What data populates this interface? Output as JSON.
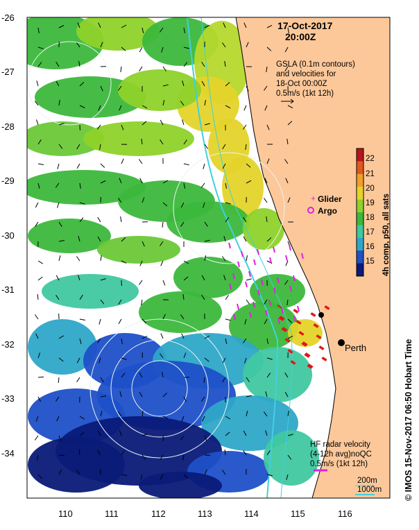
{
  "header": {
    "date": "17-Oct-2017",
    "time": "20:00Z"
  },
  "gsla_note": {
    "line1": "GSLA (0.1m contours)",
    "line2": "and velocities for",
    "line3": "18-Oct 00:00Z",
    "line4": "0.5m/s (1kt 12h)"
  },
  "colorbar": {
    "title": "4h comp, p50, all sats",
    "ticks": [
      "22",
      "21",
      "20",
      "19",
      "18",
      "17",
      "16",
      "15"
    ],
    "range": [
      14.5,
      22.8
    ],
    "colors": [
      "#0a1a78",
      "#1e50c8",
      "#2ea6c8",
      "#40c8a0",
      "#3cb83c",
      "#8ed22a",
      "#e4d42a",
      "#f0a028",
      "#e0581c",
      "#b8141c"
    ]
  },
  "legend": {
    "glider": "Glider",
    "argo": "Argo",
    "glider_color": "#e020e0",
    "argo_color": "#e020e0"
  },
  "place": {
    "perth": "Perth"
  },
  "hf_note": {
    "line1": "HF radar velocity",
    "line2": "(4-12h avg)noQC",
    "line3": "0.5m/s (1kt 12h)"
  },
  "depth_legend": {
    "d200": "200m",
    "d1000": "1000m",
    "color": "#40d0e0"
  },
  "credit": "© IMOS 15-Nov-2017 06:50 Hobart Time",
  "axes": {
    "lat_ticks": [
      "-26",
      "-27",
      "-28",
      "-29",
      "-30",
      "-31",
      "-32",
      "-33",
      "-34"
    ],
    "lon_ticks": [
      "110",
      "111",
      "112",
      "113",
      "114",
      "115",
      "116"
    ],
    "lat_range": [
      -34.8,
      -26
    ],
    "lon_range": [
      109.25,
      116.75
    ]
  },
  "colors": {
    "land": "#fcc89a",
    "hf_arrow": "#e01818",
    "velocity_arrow": "#000000"
  }
}
